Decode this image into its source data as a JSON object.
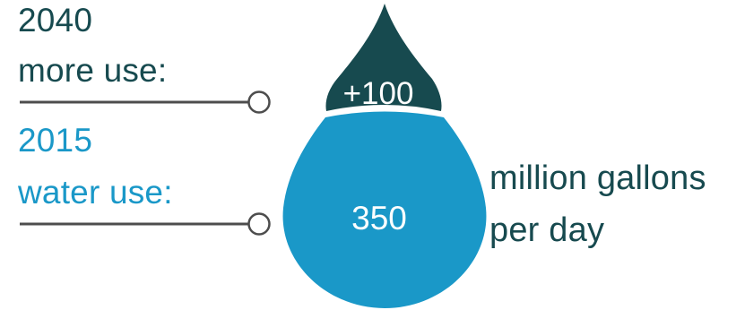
{
  "top": {
    "year": "2040",
    "caption": "more use:",
    "value": "+100",
    "color": "#174a4f"
  },
  "bottom": {
    "year": "2015",
    "caption": "water use:",
    "value": "350",
    "color": "#1a98c8"
  },
  "unit": {
    "line1": "million gallons",
    "line2": "per day",
    "color": "#174a4f"
  },
  "connector_color": "#4d4d4d"
}
